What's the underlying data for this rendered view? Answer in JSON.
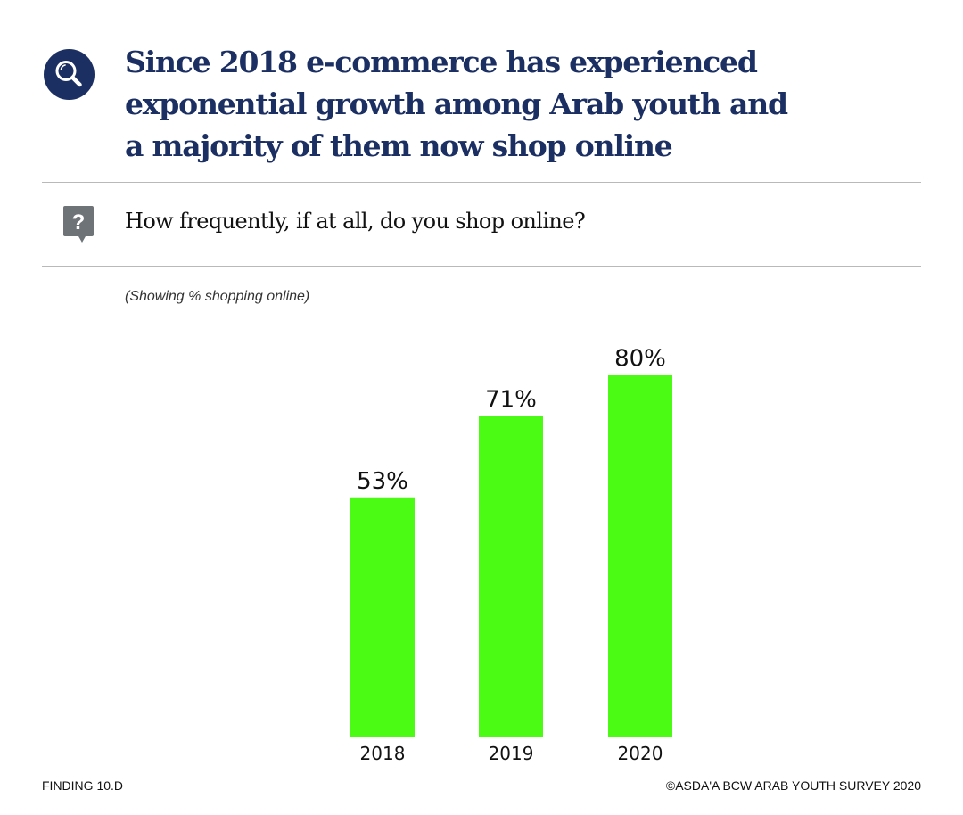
{
  "headline": {
    "lines": [
      "Since 2018 e-commerce has experienced",
      "exponential growth among Arab youth and",
      "a majority of them now shop online"
    ]
  },
  "question": {
    "text": "How frequently, if at all, do you shop online?"
  },
  "note": "(Showing % shopping online)",
  "icons": {
    "headline_icon": "search-icon",
    "question_icon": "question-bubble-icon"
  },
  "colors": {
    "brand": "#1b2f63",
    "bar": "#4cfb14",
    "question_icon": "#6e7378"
  },
  "chart_data": {
    "type": "bar",
    "categories": [
      "2018",
      "2019",
      "2020"
    ],
    "values": [
      53,
      71,
      80
    ],
    "value_labels": [
      "53%",
      "71%",
      "80%"
    ],
    "unit": "%",
    "ylim": [
      0,
      100
    ],
    "grid": false,
    "legend": "none"
  },
  "footer": {
    "left": "FINDING 10.D",
    "right": "©ASDA'A BCW ARAB YOUTH SURVEY 2020"
  }
}
